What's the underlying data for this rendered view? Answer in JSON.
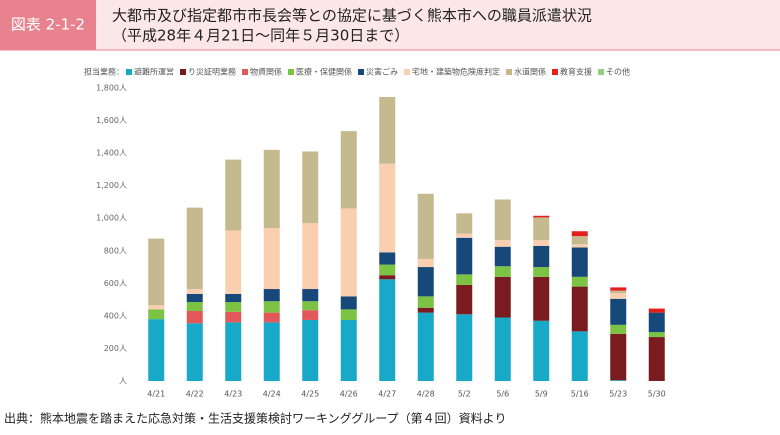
{
  "header": {
    "label": "図表 2-1-2",
    "title_lines": [
      "大都市及び指定都市市長会等との協定に基づく熊本市への職員派遣状況",
      "（平成28年４月21日～同年５月30日まで）"
    ]
  },
  "chart_data": {
    "type": "bar",
    "stacked": true,
    "legend_title": "担当業務：",
    "categories": [
      "4/21",
      "4/22",
      "4/23",
      "4/24",
      "4/25",
      "4/26",
      "4/27",
      "4/28",
      "5/2",
      "5/6",
      "5/9",
      "5/16",
      "5/23",
      "5/30"
    ],
    "series": [
      {
        "name": "避難所運営",
        "color": "#18a9c9",
        "values": [
          380,
          355,
          360,
          360,
          375,
          375,
          625,
          420,
          410,
          390,
          370,
          305,
          5,
          0
        ]
      },
      {
        "name": "り災証明業務",
        "color": "#7a1c1f",
        "values": [
          0,
          0,
          0,
          0,
          0,
          0,
          25,
          30,
          180,
          250,
          270,
          275,
          285,
          270
        ]
      },
      {
        "name": "物資関係",
        "color": "#e2585a",
        "values": [
          0,
          75,
          65,
          60,
          60,
          0,
          0,
          0,
          0,
          0,
          0,
          0,
          0,
          0
        ]
      },
      {
        "name": "医療・保健関係",
        "color": "#7cc243",
        "values": [
          60,
          55,
          60,
          70,
          55,
          65,
          65,
          70,
          65,
          65,
          60,
          60,
          55,
          30
        ]
      },
      {
        "name": "災害ごみ",
        "color": "#17487a",
        "values": [
          0,
          50,
          50,
          75,
          75,
          80,
          75,
          180,
          225,
          120,
          130,
          180,
          160,
          120
        ]
      },
      {
        "name": "宅地・建築物危険度判定",
        "color": "#f9cfb0",
        "values": [
          25,
          30,
          390,
          375,
          405,
          540,
          545,
          50,
          25,
          40,
          35,
          20,
          35,
          0
        ]
      },
      {
        "name": "水道関係",
        "color": "#c5b98f",
        "values": [
          410,
          500,
          435,
          480,
          440,
          475,
          410,
          400,
          125,
          250,
          140,
          50,
          15,
          0
        ]
      },
      {
        "name": "教育支援",
        "color": "#e3201e",
        "values": [
          0,
          0,
          0,
          0,
          0,
          0,
          0,
          0,
          0,
          0,
          10,
          30,
          20,
          25
        ]
      },
      {
        "name": "その他",
        "color": "#8fd17f",
        "values": [
          0,
          0,
          0,
          0,
          0,
          0,
          0,
          0,
          0,
          0,
          0,
          0,
          0,
          0
        ]
      }
    ],
    "ylim": [
      0,
      1800
    ],
    "yticks": [
      {
        "value": 0,
        "label": "人"
      },
      {
        "value": 200,
        "label": "200人"
      },
      {
        "value": 400,
        "label": "400人"
      },
      {
        "value": 600,
        "label": "600人"
      },
      {
        "value": 800,
        "label": "800人"
      },
      {
        "value": 1000,
        "label": "1,000人"
      },
      {
        "value": 1200,
        "label": "1,200人"
      },
      {
        "value": 1400,
        "label": "1,400人"
      },
      {
        "value": 1600,
        "label": "1,600人"
      },
      {
        "value": 1800,
        "label": "1,800人"
      }
    ],
    "grid": false
  },
  "footer": {
    "source": "出典：熊本地震を踏まえた応急対策・生活支援策検討ワーキンググループ（第４回）資料より"
  }
}
